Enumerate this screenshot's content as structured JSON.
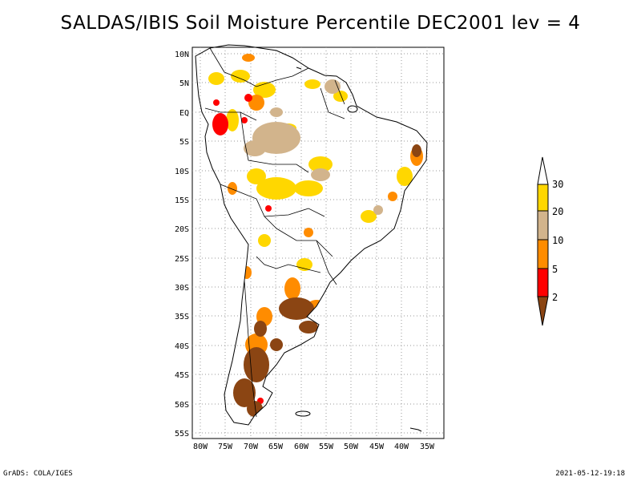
{
  "title": "SALDAS/IBIS Soil Moisture Percentile DEC2001 lev = 4",
  "footer": {
    "left": "GrADS: COLA/IGES",
    "right": "2021-05-12-19:18"
  },
  "axes": {
    "lat_ticks": [
      "10N",
      "5N",
      "EQ",
      "5S",
      "10S",
      "15S",
      "20S",
      "25S",
      "30S",
      "35S",
      "40S",
      "45S",
      "50S",
      "55S"
    ],
    "lon_ticks": [
      "80W",
      "75W",
      "70W",
      "65W",
      "60W",
      "55W",
      "50W",
      "45W",
      "40W",
      "35W"
    ]
  },
  "colorbar": {
    "labels": [
      "30",
      "20",
      "10",
      "5",
      "2"
    ],
    "colors": {
      "above30": "#ffffff",
      "20_30": "#ffd700",
      "10_20": "#d2b48c",
      "5_10": "#ff8c00",
      "2_5": "#ff0000",
      "below2": "#8b4513"
    }
  },
  "colors": {
    "coast": "#000000",
    "grid": "#999999"
  }
}
